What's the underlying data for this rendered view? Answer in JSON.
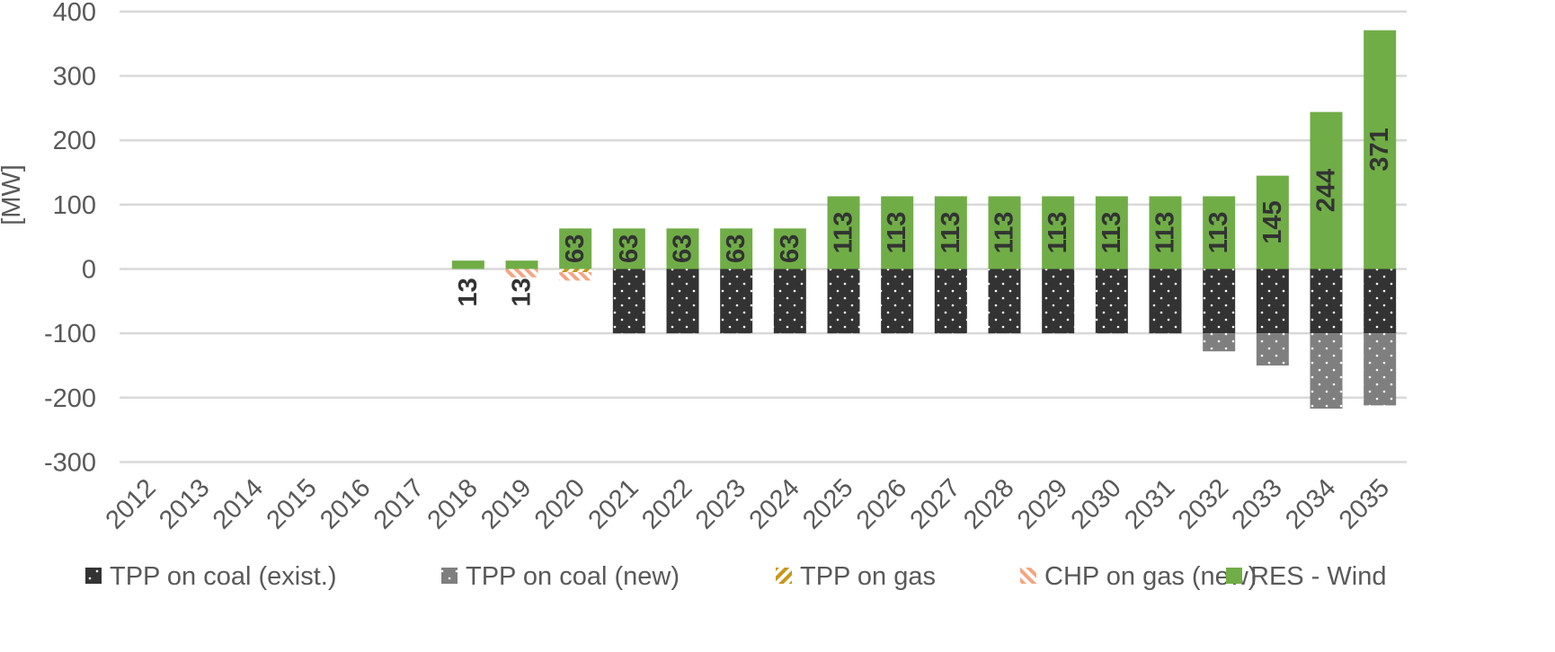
{
  "chart_data": {
    "type": "bar",
    "stacked": true,
    "ylabel": "[MW]",
    "ylim": [
      -300,
      400
    ],
    "yticks": [
      400,
      300,
      200,
      100,
      0,
      -100,
      -200,
      -300
    ],
    "grid": true,
    "legend_position": "bottom",
    "categories": [
      "2012",
      "2013",
      "2014",
      "2015",
      "2016",
      "2017",
      "2018",
      "2019",
      "2020",
      "2021",
      "2022",
      "2023",
      "2024",
      "2025",
      "2026",
      "2027",
      "2028",
      "2029",
      "2030",
      "2031",
      "2032",
      "2033",
      "2034",
      "2035"
    ],
    "series": [
      {
        "name": "TPP on coal (exist.)",
        "color": "#333333",
        "pattern": "dots",
        "values": [
          0,
          0,
          0,
          0,
          0,
          0,
          0,
          0,
          0,
          -100,
          -100,
          -100,
          -100,
          -100,
          -100,
          -100,
          -100,
          -100,
          -100,
          -100,
          -100,
          -100,
          -100,
          -100
        ]
      },
      {
        "name": "TPP on coal (new)",
        "color": "#7f7f7f",
        "pattern": "dots",
        "values": [
          0,
          0,
          0,
          0,
          0,
          0,
          0,
          0,
          0,
          0,
          0,
          0,
          0,
          0,
          0,
          0,
          0,
          0,
          0,
          0,
          -28,
          -50,
          -117,
          -112
        ]
      },
      {
        "name": "TPP on gas",
        "color": "#c9961a",
        "pattern": "stripes",
        "values": [
          0,
          0,
          0,
          0,
          0,
          0,
          0,
          0,
          -5,
          0,
          0,
          0,
          0,
          0,
          0,
          0,
          0,
          0,
          0,
          0,
          0,
          0,
          0,
          0
        ]
      },
      {
        "name": "CHP on gas (new)",
        "color": "#f4a582",
        "pattern": "stripes",
        "values": [
          0,
          0,
          0,
          0,
          0,
          0,
          0,
          -13,
          -13,
          0,
          0,
          0,
          0,
          0,
          0,
          0,
          0,
          0,
          0,
          0,
          0,
          0,
          0,
          0
        ]
      },
      {
        "name": "RES - Wind",
        "color": "#70ad47",
        "pattern": "solid",
        "values": [
          0,
          0,
          0,
          0,
          0,
          0,
          13,
          13,
          63,
          63,
          63,
          63,
          63,
          113,
          113,
          113,
          113,
          113,
          113,
          113,
          113,
          145,
          244,
          371
        ]
      }
    ],
    "data_labels": [
      {
        "category": "2018",
        "text": "13"
      },
      {
        "category": "2019",
        "text": "13"
      },
      {
        "category": "2020",
        "text": "63"
      },
      {
        "category": "2021",
        "text": "63"
      },
      {
        "category": "2022",
        "text": "63"
      },
      {
        "category": "2023",
        "text": "63"
      },
      {
        "category": "2024",
        "text": "63"
      },
      {
        "category": "2025",
        "text": "113"
      },
      {
        "category": "2026",
        "text": "113"
      },
      {
        "category": "2027",
        "text": "113"
      },
      {
        "category": "2028",
        "text": "113"
      },
      {
        "category": "2029",
        "text": "113"
      },
      {
        "category": "2030",
        "text": "113"
      },
      {
        "category": "2031",
        "text": "113"
      },
      {
        "category": "2032",
        "text": "113"
      },
      {
        "category": "2033",
        "text": "145"
      },
      {
        "category": "2034",
        "text": "244"
      },
      {
        "category": "2035",
        "text": "371"
      }
    ]
  }
}
